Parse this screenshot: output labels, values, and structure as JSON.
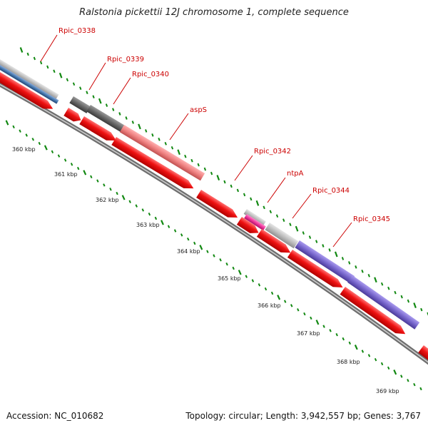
{
  "title": "Ralstonia pickettii 12J chromosome 1, complete sequence",
  "accession": "Accession: NC_010682",
  "summary": "Topology: circular; Length: 3,942,557 bp; Genes: 3,767",
  "colors": {
    "cds": "#ee1111",
    "grey_feature": "#bbbbbb",
    "dark_feature": "#666666",
    "blue_feature": "#4477aa",
    "salmon_feature": "#ee8080",
    "pink_feature": "#ee3399",
    "purple_feature": "#7766cc",
    "tick": "#118811",
    "label": "#cc0000"
  },
  "ticks": [
    {
      "label": "360 kbp"
    },
    {
      "label": "361 kbp"
    },
    {
      "label": "362 kbp"
    },
    {
      "label": "363 kbp"
    },
    {
      "label": "364 kbp"
    },
    {
      "label": "365 kbp"
    },
    {
      "label": "366 kbp"
    },
    {
      "label": "367 kbp"
    },
    {
      "label": "368 kbp"
    },
    {
      "label": "369 kbp"
    }
  ],
  "gene_labels": [
    {
      "label": "Rpic_0338"
    },
    {
      "label": "Rpic_0339"
    },
    {
      "label": "Rpic_0340"
    },
    {
      "label": "aspS"
    },
    {
      "label": "Rpic_0342"
    },
    {
      "label": "ntpA"
    },
    {
      "label": "Rpic_0344"
    },
    {
      "label": "Rpic_0345"
    }
  ]
}
